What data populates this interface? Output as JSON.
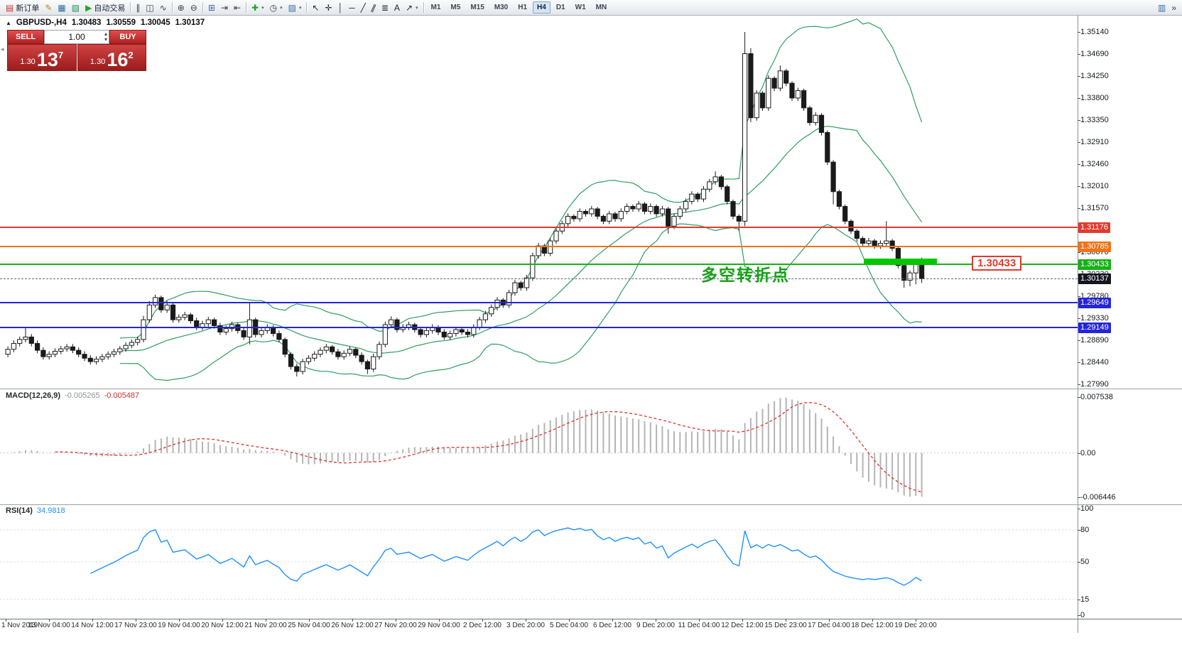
{
  "toolbar": {
    "groups": [
      {
        "items": [
          {
            "name": "new-order-button",
            "glyph": "▤",
            "glyph_color": "#c0392b",
            "label": "新订单"
          },
          {
            "name": "metaeditor-button",
            "glyph": "✎",
            "glyph_color": "#b8860b"
          },
          {
            "name": "data-window-button",
            "glyph": "▦",
            "glyph_color": "#2e6da4"
          },
          {
            "name": "strategy-tester-button",
            "glyph": "▧",
            "glyph_color": "#2e8b57"
          },
          {
            "name": "autotrading-button",
            "glyph": "▶",
            "glyph_color": "#28a428",
            "label": "自动交易"
          }
        ]
      },
      {
        "items": [
          {
            "name": "bar-chart-button",
            "glyph": "∥",
            "glyph_color": "#3a3f46"
          },
          {
            "name": "candlestick-chart-button",
            "glyph": "◫",
            "glyph_color": "#3a3f46"
          },
          {
            "name": "line-chart-button",
            "glyph": "∿",
            "glyph_color": "#3a3f46"
          }
        ]
      },
      {
        "items": [
          {
            "name": "zoom-in-button",
            "glyph": "⊕",
            "glyph_color": "#3a3f46"
          },
          {
            "name": "zoom-out-button",
            "glyph": "⊖",
            "glyph_color": "#3a3f46"
          }
        ]
      },
      {
        "items": [
          {
            "name": "tile-windows-button",
            "glyph": "⊞",
            "glyph_color": "#3a6ea5"
          },
          {
            "name": "auto-scroll-button",
            "glyph": "⇥",
            "glyph_color": "#3a3f46"
          },
          {
            "name": "chart-shift-button",
            "glyph": "⇤",
            "glyph_color": "#3a3f46"
          }
        ]
      },
      {
        "items": [
          {
            "name": "indicators-button",
            "glyph": "✚",
            "glyph_color": "#28a428",
            "caret": true
          },
          {
            "name": "periods-button",
            "glyph": "◷",
            "glyph_color": "#3a3f46",
            "caret": true
          },
          {
            "name": "templates-button",
            "glyph": "▨",
            "glyph_color": "#3a6ea5",
            "caret": true
          }
        ]
      },
      {
        "items": [
          {
            "name": "cursor-tool-button",
            "glyph": "↖",
            "glyph_color": "#23272c"
          },
          {
            "name": "crosshair-tool-button",
            "glyph": "✛",
            "glyph_color": "#23272c"
          },
          {
            "name": "vertical-line-tool-button",
            "glyph": "│",
            "glyph_color": "#23272c"
          },
          {
            "name": "horizontal-line-tool-button",
            "glyph": "─",
            "glyph_color": "#23272c"
          },
          {
            "name": "trendline-tool-button",
            "glyph": "╱",
            "glyph_color": "#23272c"
          },
          {
            "name": "channel-tool-button",
            "glyph": "∥",
            "glyph_color": "#23272c"
          },
          {
            "name": "fibonacci-tool-button",
            "glyph": "≣",
            "glyph_color": "#23272c"
          },
          {
            "name": "text-tool-button",
            "glyph": "A",
            "glyph_color": "#23272c"
          },
          {
            "name": "arrow-tool-button",
            "glyph": "↗",
            "glyph_color": "#23272c",
            "caret": true
          }
        ]
      }
    ],
    "right_items": [
      {
        "name": "chart-windows-button",
        "glyph": "▥",
        "glyph_color": "#3a6ea5"
      },
      {
        "name": "toolbar-overflow-button",
        "glyph": "»",
        "glyph_color": "#3a3f46"
      }
    ]
  },
  "timeframes": {
    "items": [
      "M1",
      "M5",
      "M15",
      "M30",
      "H1",
      "H4",
      "D1",
      "W1",
      "MN"
    ],
    "active": "H4"
  },
  "quote_header": {
    "marker": "▲",
    "symbol_period": "GBPUSD-,H4",
    "open": "1.30483",
    "high": "1.30559",
    "low": "1.30045",
    "close": "1.30137"
  },
  "one_click": {
    "sell_label": "SELL",
    "buy_label": "BUY",
    "volume": "1.00",
    "sell_price": {
      "base": "1.30",
      "pips": "13",
      "frac": "7"
    },
    "buy_price": {
      "base": "1.30",
      "pips": "16",
      "frac": "2"
    }
  },
  "price_axis": {
    "labels": [
      "1.35140",
      "1.34690",
      "1.34250",
      "1.33800",
      "1.33350",
      "1.32910",
      "1.32460",
      "1.32010",
      "1.31570",
      "1.31120",
      "1.30670",
      "1.30230",
      "1.29780",
      "1.29330",
      "1.28890",
      "1.28440",
      "1.27990"
    ]
  },
  "time_axis": {
    "labels": [
      "1 Nov 2019",
      "13 Nov 04:00",
      "14 Nov 12:00",
      "17 Nov 23:00",
      "19 Nov 04:00",
      "20 Nov 12:00",
      "21 Nov 20:00",
      "25 Nov 04:00",
      "26 Nov 12:00",
      "27 Nov 20:00",
      "29 Nov 04:00",
      "2 Dec 12:00",
      "3 Dec 20:00",
      "5 Dec 04:00",
      "6 Dec 12:00",
      "9 Dec 20:00",
      "11 Dec 04:00",
      "12 Dec 12:00",
      "15 Dec 23:00",
      "17 Dec 04:00",
      "18 Dec 12:00",
      "19 Dec 20:00"
    ]
  },
  "hlines": [
    {
      "name": "resistance-line-1",
      "price": 1.31176,
      "label": "1.31176",
      "color": "#e23a2e",
      "tag_bg": "#e23a2e"
    },
    {
      "name": "resistance-line-2",
      "price": 1.30785,
      "label": "1.30785",
      "color": "#ef7318",
      "tag_bg": "#ef7318"
    },
    {
      "name": "pivot-line",
      "price": 1.30433,
      "label": "1.30433",
      "color": "#17b117",
      "tag_bg": "#17b117"
    },
    {
      "name": "support-line-1",
      "price": 1.29649,
      "label": "1.29649",
      "color": "#2525d8",
      "tag_bg": "#2525d8"
    },
    {
      "name": "support-line-2",
      "price": 1.29149,
      "label": "1.29149",
      "color": "#2525d8",
      "tag_bg": "#2525d8"
    }
  ],
  "current_price": {
    "price": 1.30137,
    "label": "1.30137",
    "tag_bg": "#14161f"
  },
  "green_zone": {
    "price": 1.30433,
    "from_bar": 145.5,
    "to_bar": 158,
    "color": "#00c800"
  },
  "annotation": {
    "text": "多空转折点",
    "color": "#13a113"
  },
  "pivot_label": {
    "text": "1.30433"
  },
  "macd": {
    "header_name": "MACD(12,26,9)",
    "value_main": "-0.005265",
    "value_signal": "-0.005487",
    "axis_labels": {
      "top": "0.007538",
      "zero": "0.00",
      "bottom": "-0.006446"
    },
    "params": {
      "fast": 12,
      "slow": 26,
      "signal": 9
    }
  },
  "rsi": {
    "header_name": "RSI(14)",
    "value": "34.9818",
    "period": 14,
    "axis_labels": [
      "100",
      "80",
      "50",
      "15",
      "0"
    ],
    "axis_values": [
      100,
      80,
      50,
      15,
      0
    ],
    "levels": [
      80,
      50,
      15
    ]
  },
  "chart_data": {
    "type": "candlestick",
    "symbol": "GBPUSD-",
    "timeframe": "H4",
    "ylim": [
      1.2799,
      1.3514
    ],
    "bollinger": {
      "period": 20,
      "deviation": 2
    },
    "candles": [
      [
        1.286,
        1.2876,
        1.2854,
        1.287
      ],
      [
        1.287,
        1.2888,
        1.2864,
        1.2882
      ],
      [
        1.2882,
        1.2896,
        1.2876,
        1.289
      ],
      [
        1.289,
        1.2915,
        1.2884,
        1.2895
      ],
      [
        1.2895,
        1.2901,
        1.2876,
        1.2882
      ],
      [
        1.2882,
        1.2888,
        1.2862,
        1.2868
      ],
      [
        1.2868,
        1.2874,
        1.2849,
        1.2855
      ],
      [
        1.2855,
        1.2866,
        1.2849,
        1.286
      ],
      [
        1.286,
        1.2872,
        1.2854,
        1.2866
      ],
      [
        1.2866,
        1.2877,
        1.286,
        1.2871
      ],
      [
        1.2871,
        1.2881,
        1.2865,
        1.2875
      ],
      [
        1.2875,
        1.2881,
        1.2862,
        1.2868
      ],
      [
        1.2868,
        1.2874,
        1.2854,
        1.286
      ],
      [
        1.286,
        1.2866,
        1.2846,
        1.2852
      ],
      [
        1.2852,
        1.2858,
        1.2839,
        1.2845
      ],
      [
        1.2845,
        1.2856,
        1.2839,
        1.285
      ],
      [
        1.285,
        1.2861,
        1.2844,
        1.2855
      ],
      [
        1.2855,
        1.2866,
        1.2849,
        1.286
      ],
      [
        1.286,
        1.2871,
        1.2854,
        1.2865
      ],
      [
        1.2865,
        1.2877,
        1.2859,
        1.2871
      ],
      [
        1.2871,
        1.2884,
        1.2865,
        1.2878
      ],
      [
        1.2878,
        1.289,
        1.2872,
        1.2884
      ],
      [
        1.2884,
        1.2896,
        1.2878,
        1.289
      ],
      [
        1.289,
        1.2938,
        1.2884,
        1.293
      ],
      [
        1.293,
        1.2968,
        1.2924,
        1.296
      ],
      [
        1.296,
        1.2981,
        1.2954,
        1.2975
      ],
      [
        1.2975,
        1.2979,
        1.2944,
        1.295
      ],
      [
        1.295,
        1.2968,
        1.2944,
        1.296
      ],
      [
        1.296,
        1.2964,
        1.2924,
        1.293
      ],
      [
        1.293,
        1.2941,
        1.2924,
        1.2935
      ],
      [
        1.2935,
        1.2946,
        1.2929,
        1.294
      ],
      [
        1.294,
        1.2944,
        1.2922,
        1.2928
      ],
      [
        1.2928,
        1.2934,
        1.2909,
        1.2915
      ],
      [
        1.2915,
        1.2928,
        1.2909,
        1.2922
      ],
      [
        1.2922,
        1.2936,
        1.2916,
        1.293
      ],
      [
        1.293,
        1.2934,
        1.2912,
        1.2918
      ],
      [
        1.2918,
        1.2924,
        1.2899,
        1.2905
      ],
      [
        1.2905,
        1.2918,
        1.2899,
        1.2912
      ],
      [
        1.2912,
        1.2926,
        1.2906,
        1.292
      ],
      [
        1.292,
        1.2924,
        1.2902,
        1.2908
      ],
      [
        1.2908,
        1.2914,
        1.2889,
        1.2895
      ],
      [
        1.2895,
        1.2965,
        1.288,
        1.293
      ],
      [
        1.293,
        1.2934,
        1.2894,
        1.29
      ],
      [
        1.29,
        1.2914,
        1.2894,
        1.2908
      ],
      [
        1.2908,
        1.2921,
        1.2902,
        1.2915
      ],
      [
        1.2915,
        1.2919,
        1.2896,
        1.2902
      ],
      [
        1.2902,
        1.2908,
        1.2884,
        1.289
      ],
      [
        1.289,
        1.2894,
        1.2854,
        1.286
      ],
      [
        1.286,
        1.2864,
        1.2829,
        1.2835
      ],
      [
        1.2835,
        1.2841,
        1.2815,
        1.2825
      ],
      [
        1.2825,
        1.2851,
        1.2819,
        1.2845
      ],
      [
        1.2845,
        1.2858,
        1.2839,
        1.2852
      ],
      [
        1.2852,
        1.2866,
        1.2846,
        1.286
      ],
      [
        1.286,
        1.2874,
        1.2854,
        1.2868
      ],
      [
        1.2868,
        1.2881,
        1.2862,
        1.2875
      ],
      [
        1.2875,
        1.2879,
        1.2859,
        1.2865
      ],
      [
        1.2865,
        1.2871,
        1.2849,
        1.2855
      ],
      [
        1.2855,
        1.2868,
        1.2849,
        1.2862
      ],
      [
        1.2862,
        1.2876,
        1.2856,
        1.287
      ],
      [
        1.287,
        1.2874,
        1.2852,
        1.2858
      ],
      [
        1.2858,
        1.2864,
        1.2839,
        1.2845
      ],
      [
        1.2845,
        1.2849,
        1.282,
        1.283
      ],
      [
        1.283,
        1.2861,
        1.2824,
        1.2855
      ],
      [
        1.2855,
        1.2886,
        1.2849,
        1.288
      ],
      [
        1.288,
        1.2926,
        1.2874,
        1.292
      ],
      [
        1.292,
        1.2937,
        1.2914,
        1.293
      ],
      [
        1.293,
        1.2934,
        1.2904,
        1.291
      ],
      [
        1.291,
        1.2921,
        1.2904,
        1.2915
      ],
      [
        1.2915,
        1.2926,
        1.2909,
        1.292
      ],
      [
        1.292,
        1.2924,
        1.2904,
        1.291
      ],
      [
        1.291,
        1.2916,
        1.2894,
        1.29
      ],
      [
        1.29,
        1.2914,
        1.2894,
        1.2908
      ],
      [
        1.2908,
        1.2921,
        1.2902,
        1.2915
      ],
      [
        1.2915,
        1.2919,
        1.2899,
        1.2905
      ],
      [
        1.2905,
        1.2911,
        1.2889,
        1.2895
      ],
      [
        1.2895,
        1.2908,
        1.2889,
        1.2902
      ],
      [
        1.2902,
        1.2916,
        1.2896,
        1.291
      ],
      [
        1.291,
        1.2914,
        1.2899,
        1.2905
      ],
      [
        1.2905,
        1.2911,
        1.2894,
        1.29
      ],
      [
        1.29,
        1.2921,
        1.2894,
        1.2915
      ],
      [
        1.2915,
        1.2936,
        1.2909,
        1.293
      ],
      [
        1.293,
        1.2948,
        1.2924,
        1.2942
      ],
      [
        1.2942,
        1.2961,
        1.2936,
        1.2955
      ],
      [
        1.2955,
        1.2976,
        1.2949,
        1.297
      ],
      [
        1.297,
        1.2974,
        1.2954,
        1.296
      ],
      [
        1.296,
        1.2991,
        1.2954,
        1.2985
      ],
      [
        1.2985,
        1.3011,
        1.2979,
        1.3005
      ],
      [
        1.3005,
        1.3009,
        1.2989,
        1.2995
      ],
      [
        1.2995,
        1.3021,
        1.2989,
        1.3015
      ],
      [
        1.3015,
        1.3066,
        1.3009,
        1.306
      ],
      [
        1.306,
        1.3086,
        1.3054,
        1.308
      ],
      [
        1.308,
        1.3084,
        1.3059,
        1.3065
      ],
      [
        1.3065,
        1.3096,
        1.3059,
        1.309
      ],
      [
        1.309,
        1.3116,
        1.3084,
        1.311
      ],
      [
        1.311,
        1.3131,
        1.3104,
        1.3125
      ],
      [
        1.3125,
        1.3146,
        1.3119,
        1.314
      ],
      [
        1.314,
        1.3144,
        1.3129,
        1.3135
      ],
      [
        1.3135,
        1.3156,
        1.3129,
        1.315
      ],
      [
        1.315,
        1.3154,
        1.3139,
        1.3145
      ],
      [
        1.3145,
        1.3161,
        1.3139,
        1.3155
      ],
      [
        1.3155,
        1.3159,
        1.3134,
        1.314
      ],
      [
        1.314,
        1.3144,
        1.3124,
        1.313
      ],
      [
        1.313,
        1.3151,
        1.3124,
        1.3145
      ],
      [
        1.3145,
        1.3149,
        1.3129,
        1.3135
      ],
      [
        1.3135,
        1.3156,
        1.3129,
        1.315
      ],
      [
        1.315,
        1.3166,
        1.3144,
        1.316
      ],
      [
        1.316,
        1.3164,
        1.3149,
        1.3155
      ],
      [
        1.3155,
        1.3171,
        1.3149,
        1.3165
      ],
      [
        1.3165,
        1.3169,
        1.3144,
        1.315
      ],
      [
        1.315,
        1.3166,
        1.3144,
        1.316
      ],
      [
        1.316,
        1.3164,
        1.3139,
        1.3145
      ],
      [
        1.3145,
        1.3161,
        1.3139,
        1.3155
      ],
      [
        1.3155,
        1.3159,
        1.3105,
        1.312
      ],
      [
        1.312,
        1.3146,
        1.3114,
        1.314
      ],
      [
        1.314,
        1.3161,
        1.3134,
        1.3155
      ],
      [
        1.3155,
        1.3176,
        1.3149,
        1.317
      ],
      [
        1.317,
        1.3191,
        1.3164,
        1.3185
      ],
      [
        1.3185,
        1.3189,
        1.3169,
        1.3175
      ],
      [
        1.3175,
        1.3201,
        1.3169,
        1.3195
      ],
      [
        1.3195,
        1.3216,
        1.3189,
        1.321
      ],
      [
        1.321,
        1.3231,
        1.3204,
        1.322
      ],
      [
        1.322,
        1.3224,
        1.3194,
        1.32
      ],
      [
        1.32,
        1.3204,
        1.3164,
        1.317
      ],
      [
        1.317,
        1.3174,
        1.3134,
        1.314
      ],
      [
        1.314,
        1.3144,
        1.311,
        1.313
      ],
      [
        1.313,
        1.3514,
        1.312,
        1.347
      ],
      [
        1.347,
        1.3481,
        1.3331,
        1.334
      ],
      [
        1.334,
        1.3396,
        1.3334,
        1.339
      ],
      [
        1.339,
        1.3394,
        1.3354,
        1.336
      ],
      [
        1.336,
        1.3426,
        1.3354,
        1.342
      ],
      [
        1.342,
        1.3424,
        1.3394,
        1.34
      ],
      [
        1.34,
        1.3446,
        1.3394,
        1.3435
      ],
      [
        1.3435,
        1.3439,
        1.3404,
        1.341
      ],
      [
        1.341,
        1.3414,
        1.3374,
        1.338
      ],
      [
        1.338,
        1.3401,
        1.3374,
        1.3395
      ],
      [
        1.3395,
        1.3399,
        1.3354,
        1.336
      ],
      [
        1.336,
        1.3364,
        1.3324,
        1.333
      ],
      [
        1.333,
        1.3351,
        1.3324,
        1.3345
      ],
      [
        1.3345,
        1.3349,
        1.3304,
        1.331
      ],
      [
        1.331,
        1.3314,
        1.3244,
        1.325
      ],
      [
        1.325,
        1.3254,
        1.3164,
        1.319
      ],
      [
        1.319,
        1.3194,
        1.3154,
        1.316
      ],
      [
        1.316,
        1.3164,
        1.3124,
        1.313
      ],
      [
        1.313,
        1.3134,
        1.3104,
        1.311
      ],
      [
        1.311,
        1.3114,
        1.3089,
        1.3095
      ],
      [
        1.3095,
        1.3099,
        1.3079,
        1.3085
      ],
      [
        1.3085,
        1.3096,
        1.3079,
        1.309
      ],
      [
        1.309,
        1.3094,
        1.3074,
        1.308
      ],
      [
        1.308,
        1.3091,
        1.3074,
        1.3085
      ],
      [
        1.3085,
        1.313,
        1.3079,
        1.309
      ],
      [
        1.309,
        1.3094,
        1.3069,
        1.3075
      ],
      [
        1.3075,
        1.3079,
        1.3034,
        1.304
      ],
      [
        1.304,
        1.3044,
        1.2995,
        1.301
      ],
      [
        1.301,
        1.303,
        1.2998,
        1.3025
      ],
      [
        1.3025,
        1.3052,
        1.3002,
        1.3048
      ],
      [
        1.30483,
        1.30559,
        1.30045,
        1.30137
      ]
    ]
  }
}
